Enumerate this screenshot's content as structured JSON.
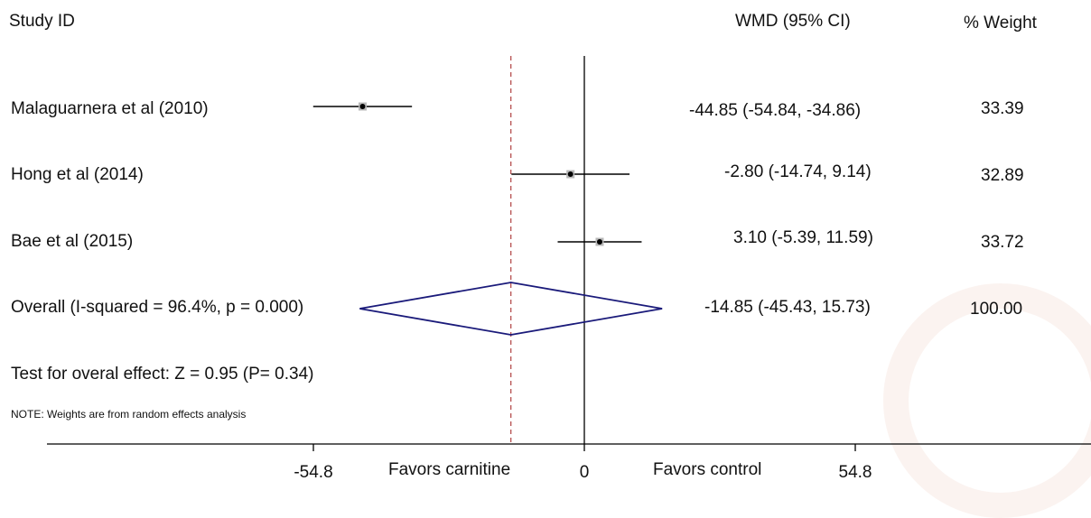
{
  "header": {
    "study_id": "Study ID",
    "effect": "WMD (95% CI)",
    "weight": "% Weight"
  },
  "chart_data": {
    "type": "forest",
    "xlim": [
      -90,
      90
    ],
    "null_line": 0,
    "overall_line": -14.85,
    "ticks": [
      {
        "value": -54.8,
        "label": "-54.8"
      },
      {
        "value": 0,
        "label": "0"
      },
      {
        "value": 54.8,
        "label": "54.8"
      }
    ],
    "favors_left": "Favors carnitine",
    "favors_right": "Favors control",
    "studies": [
      {
        "label": "Malaguarnera et al (2010)",
        "estimate": -44.85,
        "lower": -54.84,
        "upper": -34.86,
        "ci_text": "-44.85 (-54.84, -34.86)",
        "weight": "33.39"
      },
      {
        "label": "Hong et al  (2014)",
        "estimate": -2.8,
        "lower": -14.74,
        "upper": 9.14,
        "ci_text": "-2.80 (-14.74, 9.14)",
        "weight": "32.89"
      },
      {
        "label": "Bae et al  (2015)",
        "estimate": 3.1,
        "lower": -5.39,
        "upper": 11.59,
        "ci_text": "3.10 (-5.39, 11.59)",
        "weight": "33.72"
      }
    ],
    "overall": {
      "label": "Overall  (I-squared = 96.4%, p = 0.000)",
      "estimate": -14.85,
      "lower": -45.43,
      "upper": 15.73,
      "ci_text": "-14.85 (-45.43, 15.73)",
      "weight": "100.00"
    },
    "test_text": "Test for overal effect: Z = 0.95 (P= 0.34)",
    "note": "NOTE: Weights are from random effects analysis",
    "colors": {
      "diamond": "#1a1a7a",
      "overall_line": "#b04040",
      "lines": "#000000"
    }
  }
}
